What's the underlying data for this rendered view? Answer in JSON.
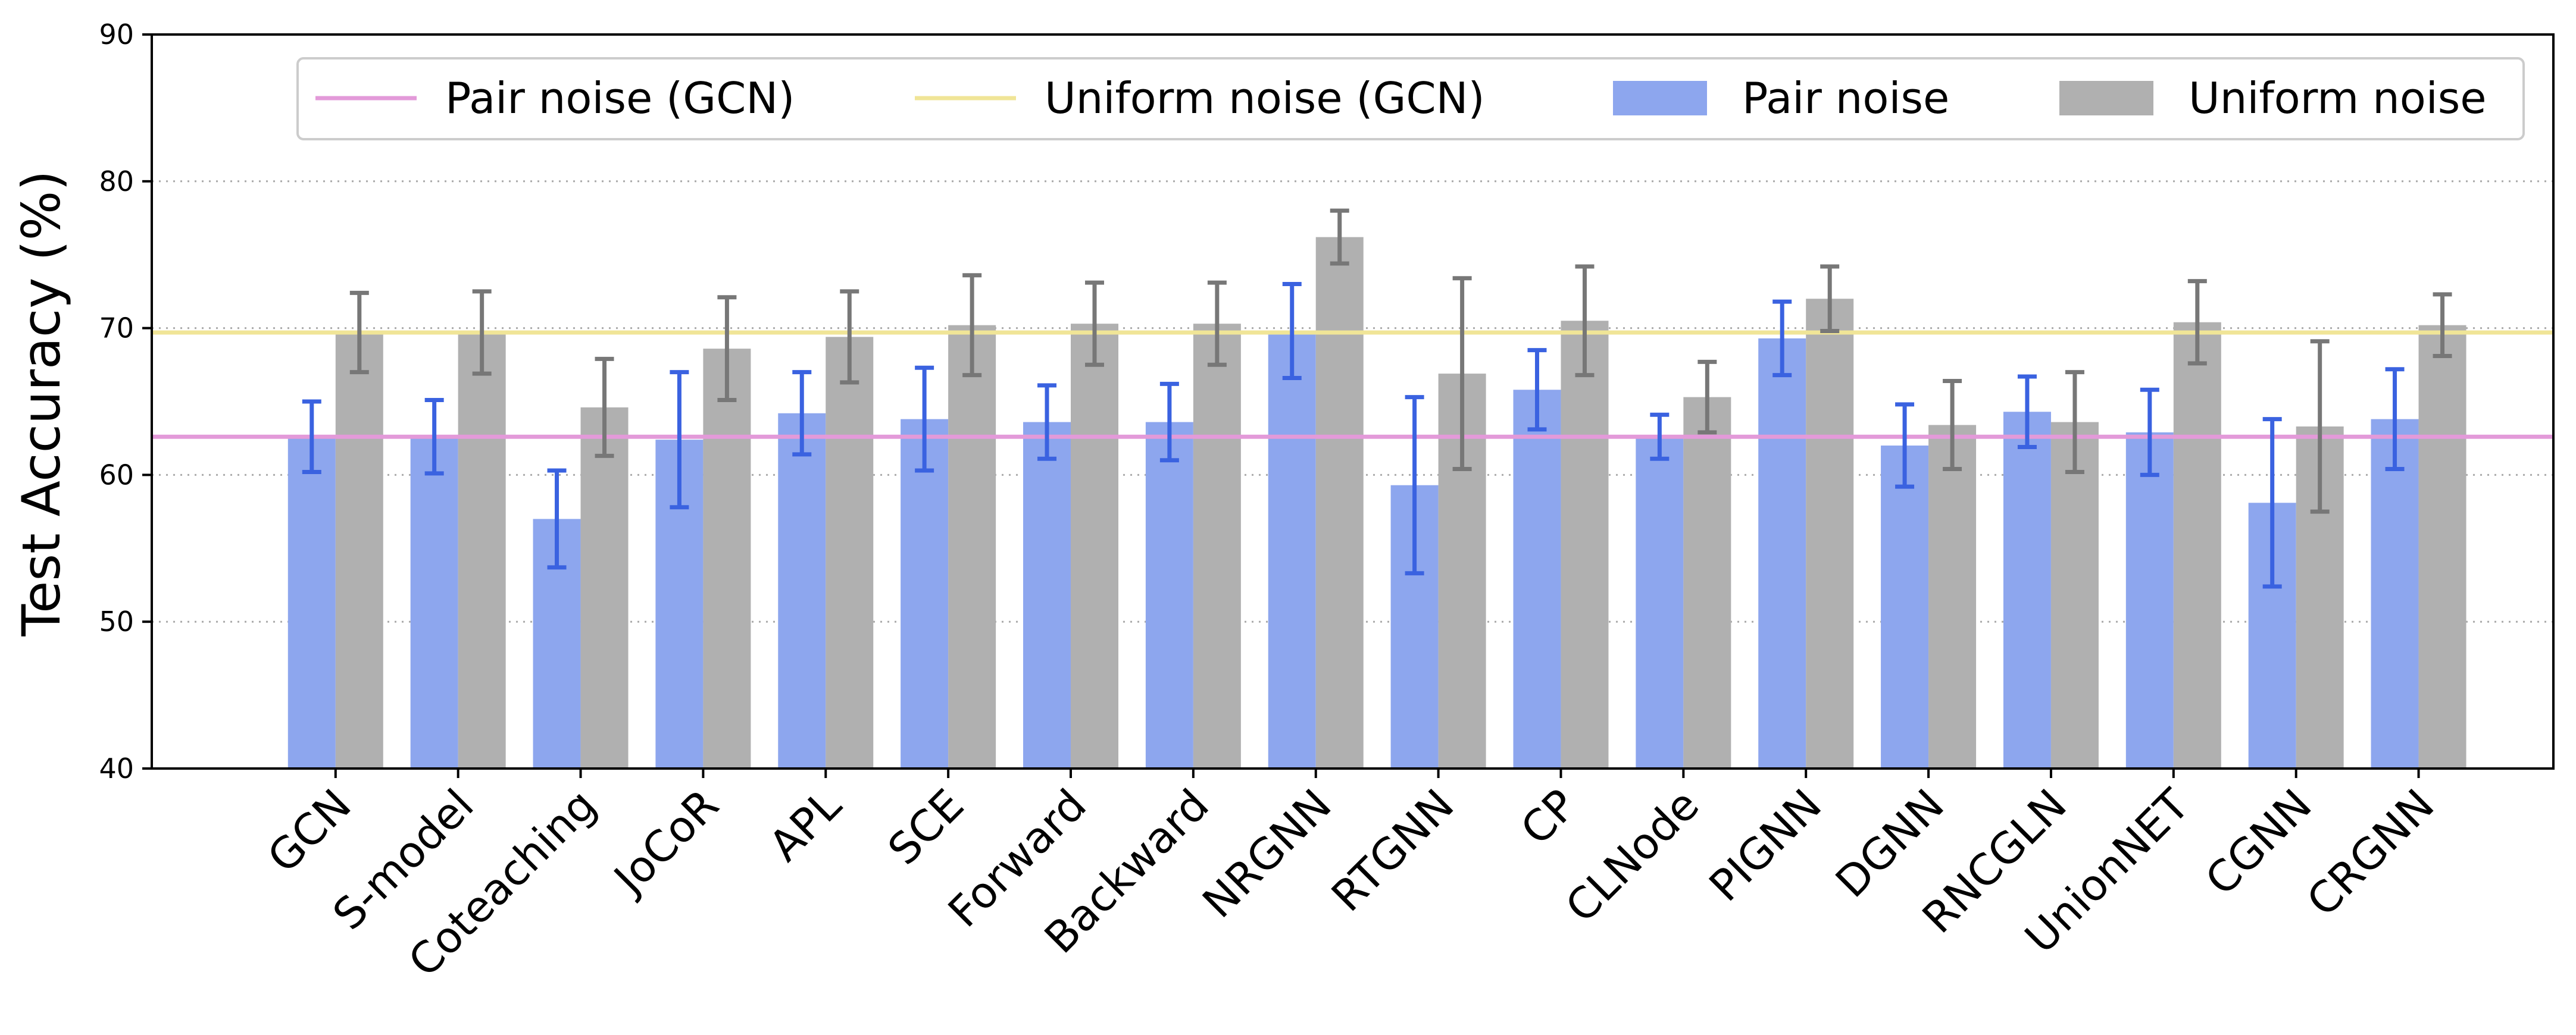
{
  "colors": {
    "pair_bar": "#8da6ee",
    "uniform_bar": "#b0b0b0",
    "pair_err": "#3a62e0",
    "uniform_err": "#777777",
    "pair_gcn_line": "#e39ad9",
    "uniform_gcn_line": "#f0e597",
    "grid": "#aaaaaa",
    "axis": "#000000"
  },
  "chart_data": {
    "type": "bar",
    "title": "",
    "xlabel": "",
    "ylabel": "Test Accuracy (%)",
    "ylim": [
      40,
      90
    ],
    "yticks": [
      40,
      50,
      60,
      70,
      80,
      90
    ],
    "grid": "horizontal dotted",
    "legend_placement": "top",
    "legend": [
      {
        "label": "Pair noise (GCN)",
        "kind": "line",
        "color": "#e39ad9"
      },
      {
        "label": "Uniform noise (GCN)",
        "kind": "line",
        "color": "#f0e597"
      },
      {
        "label": "Pair noise",
        "kind": "bar",
        "color": "#8da6ee"
      },
      {
        "label": "Uniform noise",
        "kind": "bar",
        "color": "#b0b0b0"
      }
    ],
    "categories": [
      "GCN",
      "S-model",
      "Coteaching",
      "JoCoR",
      "APL",
      "SCE",
      "Forward",
      "Backward",
      "NRGNN",
      "RTGNN",
      "CP",
      "CLNode",
      "PIGNN",
      "DGNN",
      "RNCGLN",
      "UnionNET",
      "CGNN",
      "CRGNN"
    ],
    "series": [
      {
        "name": "Pair noise",
        "color": "#8da6ee",
        "error_color": "#3a62e0",
        "values": [
          62.6,
          62.6,
          57.0,
          62.4,
          64.2,
          63.8,
          63.6,
          63.6,
          69.8,
          59.3,
          65.8,
          62.6,
          69.3,
          62.0,
          64.3,
          62.9,
          58.1,
          63.8
        ],
        "errors": [
          2.4,
          2.5,
          3.3,
          4.6,
          2.8,
          3.5,
          2.5,
          2.6,
          3.2,
          6.0,
          2.7,
          1.5,
          2.5,
          2.8,
          2.4,
          2.9,
          5.7,
          3.4
        ]
      },
      {
        "name": "Uniform noise",
        "color": "#b0b0b0",
        "error_color": "#777777",
        "values": [
          69.7,
          69.7,
          64.6,
          68.6,
          69.4,
          70.2,
          70.3,
          70.3,
          76.2,
          66.9,
          70.5,
          65.3,
          72.0,
          63.4,
          63.6,
          70.4,
          63.3,
          70.2
        ],
        "errors": [
          2.7,
          2.8,
          3.3,
          3.5,
          3.1,
          3.4,
          2.8,
          2.8,
          1.8,
          6.5,
          3.7,
          2.4,
          2.2,
          3.0,
          3.4,
          2.8,
          5.8,
          2.1
        ]
      }
    ],
    "reference_lines": [
      {
        "name": "Pair noise (GCN)",
        "y": 62.6,
        "color": "#e39ad9"
      },
      {
        "name": "Uniform noise (GCN)",
        "y": 69.7,
        "color": "#f0e597"
      }
    ]
  }
}
